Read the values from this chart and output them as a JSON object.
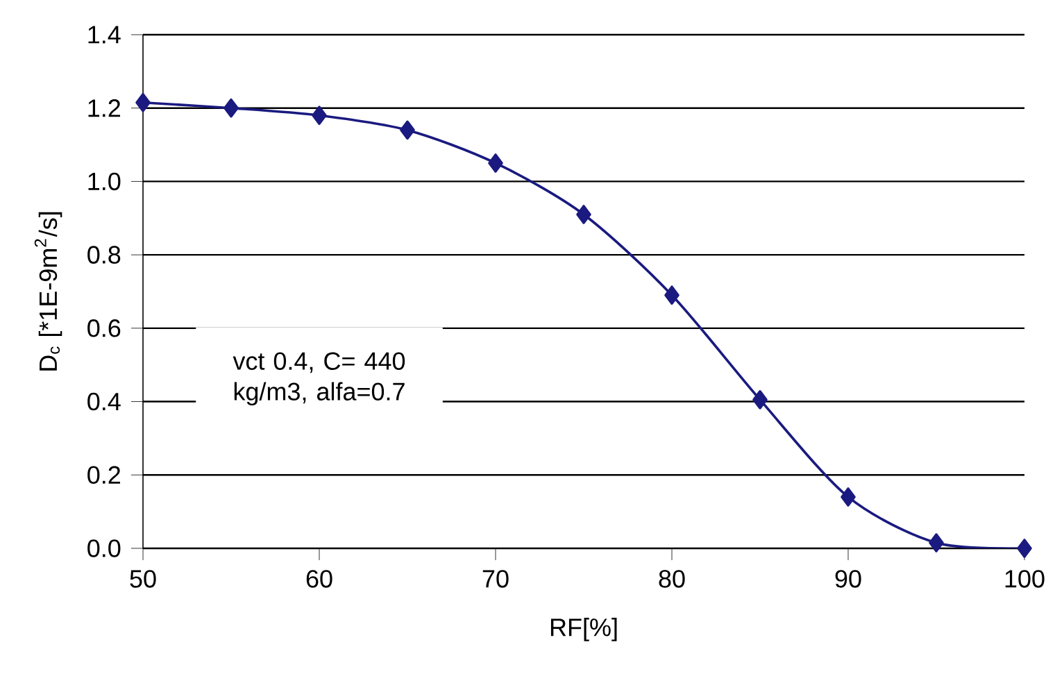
{
  "chart_data": {
    "type": "line",
    "xlabel": "RF[%]",
    "ylabel": "D$_{c}$ [*1E-9m$^{2}$/s]",
    "x": [
      50,
      55,
      60,
      65,
      70,
      75,
      80,
      85,
      90,
      95,
      100
    ],
    "series": [
      {
        "color": "#1a1a80",
        "values": [
          1.215,
          1.2,
          1.18,
          1.14,
          1.05,
          0.91,
          0.69,
          0.405,
          0.14,
          0.015,
          0.0
        ]
      }
    ],
    "xlim": [
      50,
      100
    ],
    "xticks": [
      50,
      60,
      70,
      80,
      90,
      100
    ],
    "ylim": [
      0,
      1.4
    ],
    "yticks": [
      {
        "value": 0,
        "label": "0.0"
      },
      0.2,
      0.4,
      0.6,
      0.8,
      {
        "value": 1,
        "label": "1.0"
      },
      1.2,
      1.4
    ],
    "grid": "y",
    "marker": "diamond",
    "line_style": "solid",
    "annotations": [
      "vct 0.4, C= 440 kg/m3, alfa=0.7"
    ]
  }
}
